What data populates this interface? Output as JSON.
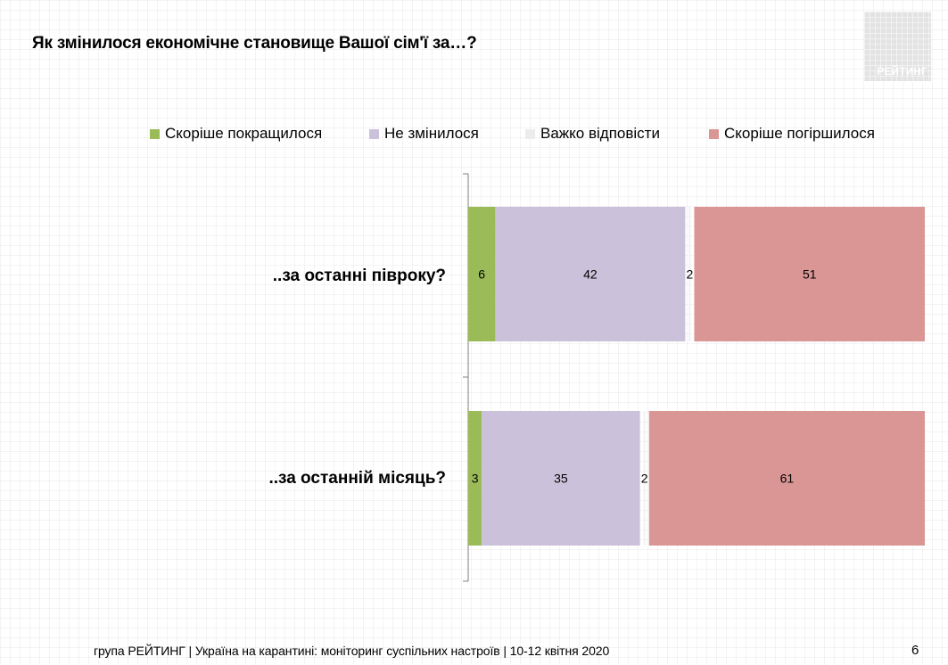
{
  "header": {
    "title": "Як змінилося економічне становище Вашої сім'ї за…?"
  },
  "logo": {
    "text": "РЕЙТИНГ",
    "color": "#e3e3e3"
  },
  "footer": {
    "text": "група РЕЙТИНГ | Україна на карантині: моніторинг суспільних настроїв  | 10-12 квітня  2020",
    "page_number": "6"
  },
  "chart_data": {
    "type": "bar",
    "orientation": "horizontal",
    "stacked": true,
    "title": "Як змінилося економічне становище Вашої сім'ї за…?",
    "categories": [
      "..за останні півроку?",
      "..за останній місяць?"
    ],
    "series": [
      {
        "name": "Скоріше покращилося",
        "color": "#9bbb59",
        "values": [
          6,
          3
        ]
      },
      {
        "name": "Не змінилося",
        "color": "#ccc1da",
        "values": [
          42,
          35
        ]
      },
      {
        "name": "Важко відповісти",
        "color": "#f2f2f2",
        "values": [
          2,
          2
        ]
      },
      {
        "name": "Скоріше погіршилося",
        "color": "#d99694",
        "values": [
          51,
          61
        ]
      }
    ],
    "legend_position": "top",
    "grid": false,
    "xlim": [
      0,
      101
    ]
  }
}
